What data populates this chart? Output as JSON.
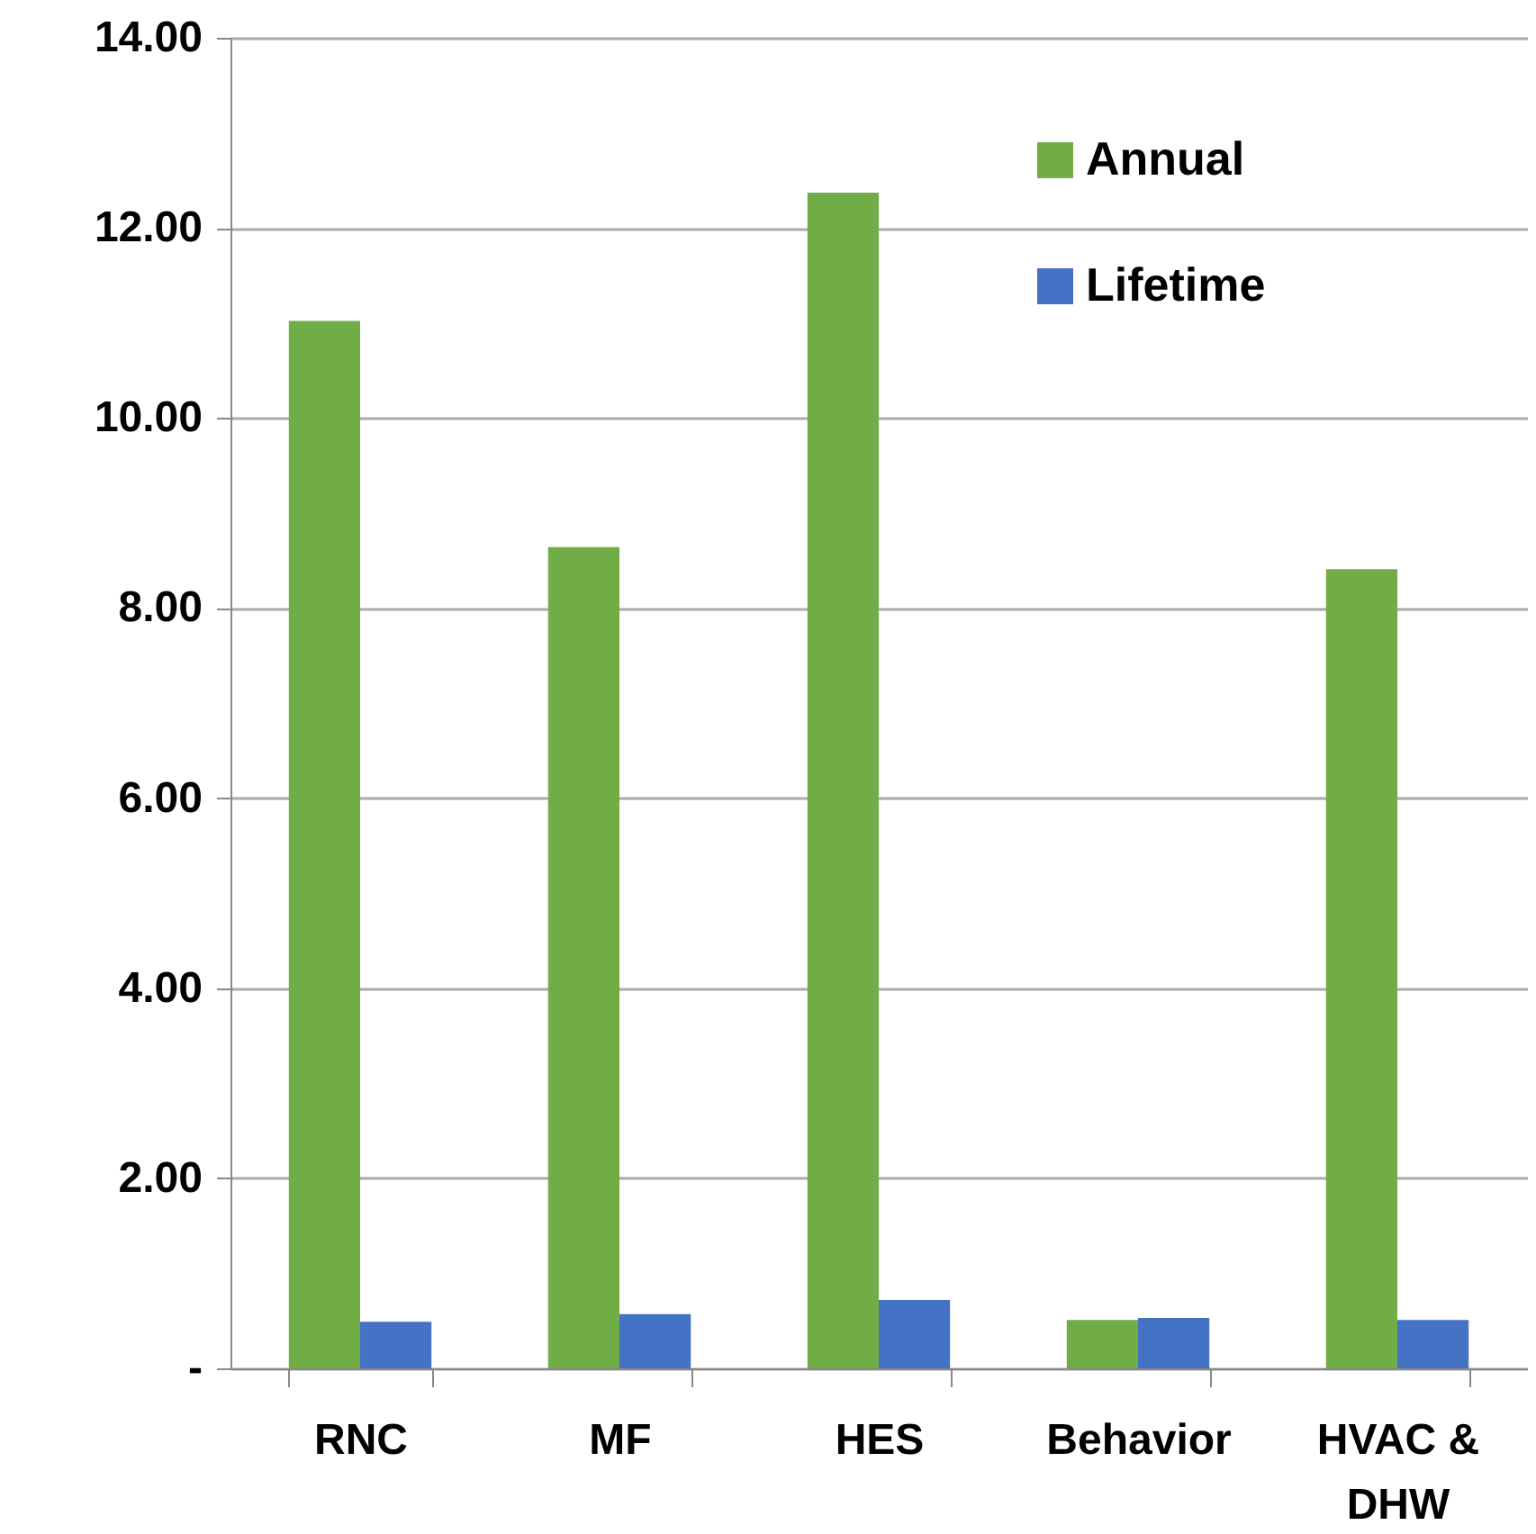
{
  "chart_data": {
    "type": "bar",
    "categories": [
      "RNC",
      "MF",
      "HES",
      "Behavior",
      "HVAC & DHW"
    ],
    "series": [
      {
        "name": "Annual",
        "color": "#70ad47",
        "values": [
          11.02,
          8.64,
          12.37,
          0.51,
          8.41
        ]
      },
      {
        "name": "Lifetime",
        "color": "#4472c4",
        "values": [
          0.49,
          0.57,
          0.72,
          0.53,
          0.51
        ]
      }
    ],
    "ylim": [
      0,
      14
    ],
    "yticks": [
      {
        "value": 0,
        "label": "-"
      },
      {
        "value": 2,
        "label": "2.00"
      },
      {
        "value": 4,
        "label": "4.00"
      },
      {
        "value": 6,
        "label": "6.00"
      },
      {
        "value": 8,
        "label": "8.00"
      },
      {
        "value": 10,
        "label": "10.00"
      },
      {
        "value": 12,
        "label": "12.00"
      },
      {
        "value": 14,
        "label": "14.00"
      }
    ],
    "grid": "y",
    "legend": "top right"
  }
}
